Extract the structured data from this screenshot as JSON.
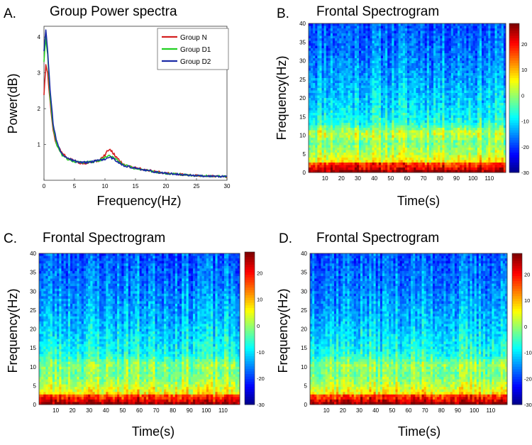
{
  "chart_data": [
    {
      "panel_letter": "A.",
      "type": "line",
      "title": "Group Power spectra",
      "xlabel": "Frequency(Hz)",
      "ylabel": "Power(dB)",
      "xlim": [
        0,
        30
      ],
      "ylim": [
        0,
        4.3
      ],
      "xticks": [
        0,
        5,
        10,
        15,
        20,
        25,
        30
      ],
      "yticks": [
        1,
        2,
        3,
        4
      ],
      "legend_position": "top-right",
      "colors": {
        "Group N": "#d42020",
        "Group D1": "#22d022",
        "Group D2": "#1a2aa6"
      },
      "series": [
        {
          "name": "Group N",
          "x": [
            0,
            0.3,
            0.6,
            1,
            1.5,
            2,
            3,
            4,
            5,
            6,
            7,
            8,
            9,
            10,
            10.5,
            11,
            12,
            13,
            15,
            18,
            20,
            25,
            30
          ],
          "y": [
            2.4,
            3.2,
            3.0,
            2.2,
            1.4,
            1.0,
            0.75,
            0.6,
            0.55,
            0.48,
            0.48,
            0.52,
            0.55,
            0.7,
            0.85,
            0.82,
            0.62,
            0.45,
            0.35,
            0.25,
            0.2,
            0.13,
            0.1
          ]
        },
        {
          "name": "Group D1",
          "x": [
            0,
            0.3,
            0.6,
            1,
            1.5,
            2,
            3,
            4,
            5,
            6,
            7,
            8,
            9,
            10,
            10.5,
            11,
            12,
            13,
            15,
            18,
            20,
            25,
            30
          ],
          "y": [
            3.3,
            4.0,
            3.5,
            2.3,
            1.5,
            1.05,
            0.7,
            0.58,
            0.52,
            0.5,
            0.5,
            0.52,
            0.55,
            0.62,
            0.68,
            0.66,
            0.55,
            0.43,
            0.33,
            0.24,
            0.19,
            0.13,
            0.1
          ]
        },
        {
          "name": "Group D2",
          "x": [
            0,
            0.3,
            0.6,
            1,
            1.5,
            2,
            3,
            4,
            5,
            6,
            7,
            8,
            9,
            10,
            10.5,
            11,
            12,
            13,
            15,
            18,
            20,
            25,
            30
          ],
          "y": [
            3.6,
            4.2,
            3.6,
            2.5,
            1.6,
            1.1,
            0.72,
            0.6,
            0.54,
            0.5,
            0.5,
            0.52,
            0.55,
            0.6,
            0.65,
            0.63,
            0.53,
            0.42,
            0.33,
            0.24,
            0.19,
            0.13,
            0.1
          ]
        }
      ]
    },
    {
      "panel_letter": "B.",
      "type": "heatmap",
      "title": "Frontal Spectrogram",
      "xlabel": "Time(s)",
      "ylabel": "Frequency(Hz)",
      "xlim": [
        0,
        120
      ],
      "ylim": [
        0,
        40
      ],
      "xticks": [
        10,
        20,
        30,
        40,
        50,
        60,
        70,
        80,
        90,
        100,
        110
      ],
      "yticks": [
        0,
        5,
        10,
        15,
        20,
        25,
        30,
        35,
        40
      ],
      "colorbar_ticks": [
        20,
        10,
        0,
        -10,
        -20,
        -30
      ],
      "colorbar_range": [
        -30,
        28
      ],
      "alpha_peak_strength": 1.0,
      "seed": 11
    },
    {
      "panel_letter": "C.",
      "type": "heatmap",
      "title": "Frontal Spectrogram",
      "xlabel": "Time(s)",
      "ylabel": "Frequency(Hz)",
      "xlim": [
        0,
        120
      ],
      "ylim": [
        0,
        40
      ],
      "xticks": [
        10,
        20,
        30,
        40,
        50,
        60,
        70,
        80,
        90,
        100,
        110
      ],
      "yticks": [
        0,
        5,
        10,
        15,
        20,
        25,
        30,
        35,
        40
      ],
      "colorbar_ticks": [
        20,
        10,
        0,
        -10,
        -20,
        -30
      ],
      "colorbar_range": [
        -30,
        28
      ],
      "alpha_peak_strength": 0.55,
      "seed": 23
    },
    {
      "panel_letter": "D.",
      "type": "heatmap",
      "title": "Frontal Spectrogram",
      "xlabel": "Time(s)",
      "ylabel": "Frequency(Hz)",
      "xlim": [
        0,
        120
      ],
      "ylim": [
        0,
        40
      ],
      "xticks": [
        10,
        20,
        30,
        40,
        50,
        60,
        70,
        80,
        90,
        100,
        110
      ],
      "yticks": [
        0,
        5,
        10,
        15,
        20,
        25,
        30,
        35,
        40
      ],
      "colorbar_ticks": [
        20,
        10,
        0,
        -10,
        -20,
        -30
      ],
      "colorbar_range": [
        -30,
        28
      ],
      "alpha_peak_strength": 0.6,
      "seed": 37
    }
  ]
}
